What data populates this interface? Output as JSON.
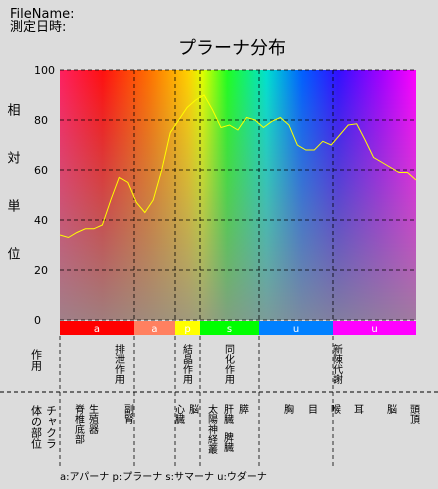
{
  "header": {
    "file_name": "FileName:",
    "date": "測定日時:"
  },
  "chart_data": {
    "type": "line",
    "title": "プラーナ分布",
    "y_label": "相対単位",
    "values": [
      34,
      33,
      35,
      36.5,
      36.5,
      38,
      48,
      57,
      55,
      47,
      43,
      48,
      60,
      75,
      80,
      85,
      88,
      90,
      84,
      77,
      78,
      76,
      81,
      80,
      77,
      79.5,
      81,
      78,
      70,
      68,
      68,
      71.5,
      70,
      74,
      78,
      78.5,
      72,
      65,
      63,
      61,
      59,
      59,
      56
    ],
    "color": "#ffff00",
    "ylim": [
      0,
      100
    ],
    "yticks": [
      0,
      20,
      40,
      60,
      80,
      100
    ],
    "grid": true
  },
  "bands": [
    {
      "label": "a",
      "color": "#ff0000"
    },
    {
      "label": "a",
      "color": "#ff8060"
    },
    {
      "label": "p",
      "color": "#ffff00"
    },
    {
      "label": "s",
      "color": "#00ff00"
    },
    {
      "label": "u",
      "color": "#0080ff"
    },
    {
      "label": "u",
      "color": "#ff00ff"
    }
  ],
  "table": {
    "row_labels": [
      "作用",
      "体の部位",
      "チャクラ"
    ],
    "functions": [
      "排泄作用",
      "結晶作用",
      "同化作用",
      "新陳代謝"
    ],
    "body_parts": [
      "脊椎底部",
      "生殖器",
      "副腎",
      "心臓",
      "脳",
      "太陽神経叢",
      "肝臓",
      "脾臓",
      "膵",
      "胸",
      "目",
      "喉",
      "耳",
      "脳",
      "頭頂"
    ]
  },
  "legend": "a:アパーナ p:プラーナ s:サマーナ u:ウダーナ"
}
